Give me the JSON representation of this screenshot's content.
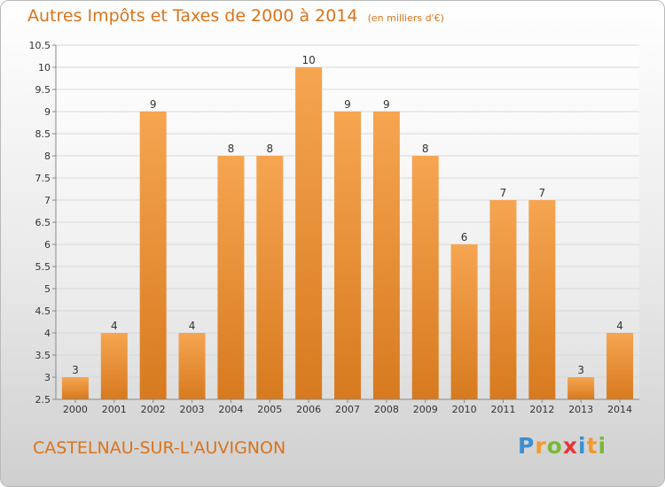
{
  "title": "Autres Impôts et Taxes de 2000 à 2014",
  "subtitle": "(en milliers d'€)",
  "commune": "CASTELNAU-SUR-L'AUVIGNON",
  "logo": {
    "text": "Proxiti",
    "letter_colors": [
      "#3c8fd1",
      "#f29a2e",
      "#7ab83a",
      "#e4373a",
      "#3c8fd1",
      "#f29a2e",
      "#7ab83a"
    ]
  },
  "colors": {
    "bar_top": "#f6a551",
    "bar_bottom": "#d77a1f",
    "title": "#d9731c",
    "axis_text": "#333333",
    "grid": "#d8d8d8"
  },
  "chart_data": {
    "type": "bar",
    "title": "Autres Impôts et Taxes de 2000 à 2014",
    "subtitle": "(en milliers d'€)",
    "categories": [
      "2000",
      "2001",
      "2002",
      "2003",
      "2004",
      "2005",
      "2006",
      "2007",
      "2008",
      "2009",
      "2010",
      "2011",
      "2012",
      "2013",
      "2014"
    ],
    "values": [
      3,
      4,
      9,
      4,
      8,
      8,
      10,
      9,
      9,
      8,
      6,
      7,
      7,
      3,
      4
    ],
    "ylim": [
      2.5,
      10.5
    ],
    "yticks": [
      "2.5",
      "3",
      "3.5",
      "4",
      "4.5",
      "5",
      "5.5",
      "6",
      "6.5",
      "7",
      "7.5",
      "8",
      "8.5",
      "9",
      "9.5",
      "10",
      "10.5"
    ],
    "grid": true,
    "xlabel": "",
    "ylabel": ""
  }
}
